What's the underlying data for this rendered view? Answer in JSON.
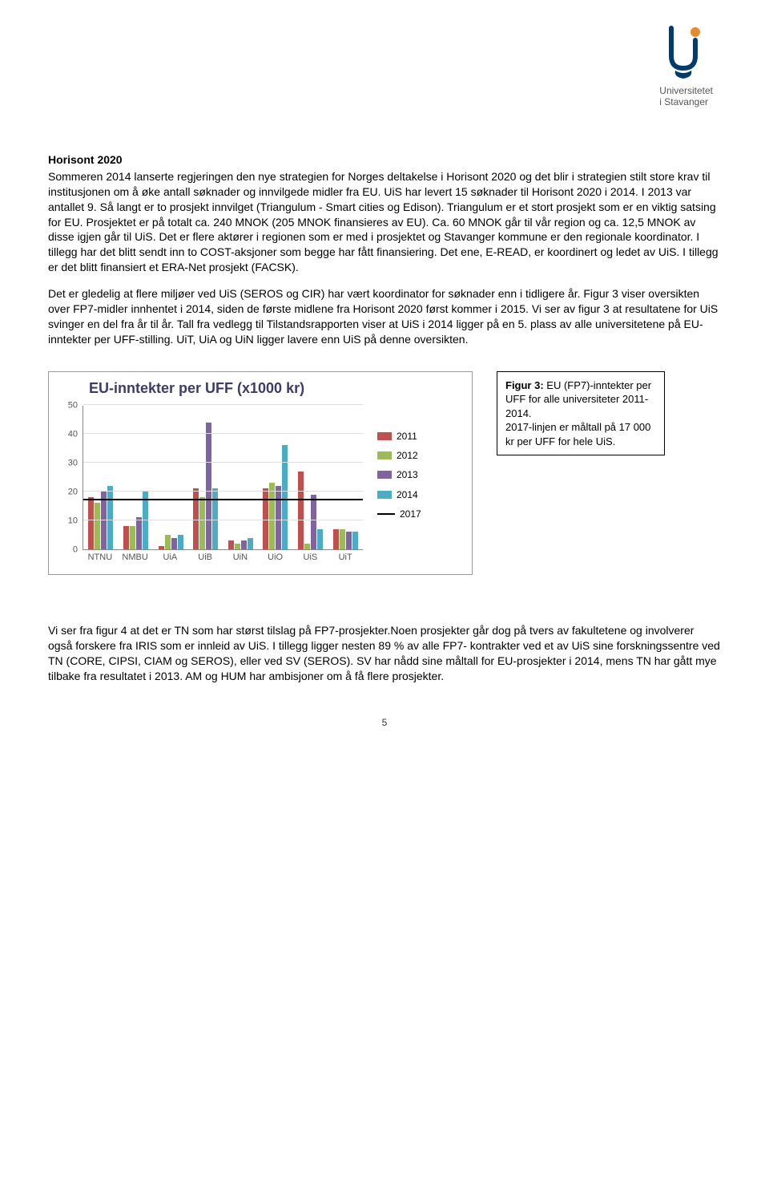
{
  "logo": {
    "line1": "Universitetet",
    "line2": "i Stavanger",
    "accent_color": "#003c71",
    "orange": "#e68a2e"
  },
  "section_title": "Horisont 2020",
  "para1": "Sommeren 2014 lanserte regjeringen den nye strategien for Norges deltakelse i Horisont 2020 og det blir i strategien stilt store krav til institusjonen om å øke antall søknader og innvilgede midler fra EU. UiS har levert 15 søknader til Horisont 2020 i 2014. I 2013 var antallet 9. Så langt er to prosjekt innvilget (Triangulum - Smart cities og Edison). Triangulum er et stort prosjekt som er en viktig satsing for EU. Prosjektet er på totalt ca. 240 MNOK (205 MNOK finansieres av EU). Ca. 60 MNOK går til vår region og ca. 12,5 MNOK av disse igjen går til UiS. Det er flere aktører i regionen som er med i prosjektet og Stavanger kommune er den regionale koordinator. I tillegg har det blitt sendt inn to COST-aksjoner som begge har fått finansiering. Det ene, E-READ, er koordinert og ledet av UiS. I tillegg er det blitt finansiert et ERA-Net prosjekt (FACSK).",
  "para2": "Det er gledelig at flere miljøer ved UiS (SEROS og CIR) har vært koordinator for søknader enn i tidligere år. Figur 3 viser oversikten over FP7-midler innhentet i 2014, siden de første midlene fra Horisont 2020 først kommer i 2015. Vi ser av figur 3 at resultatene for UiS svinger en del fra år til år. Tall fra vedlegg til Tilstandsrapporten viser at UiS i 2014 ligger på en 5. plass av alle universitetene på EU-inntekter per UFF-stilling. UiT, UiA og UiN ligger lavere enn UiS på denne oversikten.",
  "para3": "Vi ser fra figur 4 at det er TN som har størst tilslag på FP7-prosjekter.Noen prosjekter går dog på tvers av fakultetene og involverer også forskere fra IRIS som er innleid av UiS. I tillegg ligger nesten 89 % av alle FP7- kontrakter ved et av UiS sine forskningssentre ved TN (CORE, CIPSI, CIAM og SEROS), eller ved SV (SEROS). SV har nådd sine måltall for EU-prosjekter i 2014, mens TN har gått mye tilbake fra resultatet i 2013. AM og HUM har ambisjoner om å få flere prosjekter.",
  "chart": {
    "title": "EU-inntekter per UFF (x1000 kr)",
    "ylim": [
      0,
      50
    ],
    "ytick_step": 10,
    "target_value": 17,
    "categories": [
      "NTNU",
      "NMBU",
      "UiA",
      "UiB",
      "UiN",
      "UiO",
      "UiS",
      "UiT"
    ],
    "series": [
      {
        "name": "2011",
        "color": "#c0504d",
        "values": [
          18,
          8,
          1,
          21,
          3,
          21,
          27,
          7
        ]
      },
      {
        "name": "2012",
        "color": "#9bbb59",
        "values": [
          16,
          8,
          5,
          18,
          2,
          23,
          2,
          7
        ]
      },
      {
        "name": "2013",
        "color": "#8064a2",
        "values": [
          20,
          11,
          4,
          44,
          3,
          22,
          19,
          6
        ]
      },
      {
        "name": "2014",
        "color": "#4bacc6",
        "values": [
          22,
          20,
          5,
          21,
          4,
          36,
          7,
          6
        ]
      }
    ],
    "target_series": {
      "name": "2017",
      "color": "#000000"
    },
    "grid_color": "#dddddd",
    "axis_color": "#888888",
    "title_color": "#3b3b6d"
  },
  "caption": {
    "label": "Figur 3:",
    "text1": " EU (FP7)-inntekter per UFF for alle universiteter 2011-2014.",
    "text2": "2017-linjen er måltall på 17 000 kr per UFF for hele UiS."
  },
  "page_number": "5"
}
